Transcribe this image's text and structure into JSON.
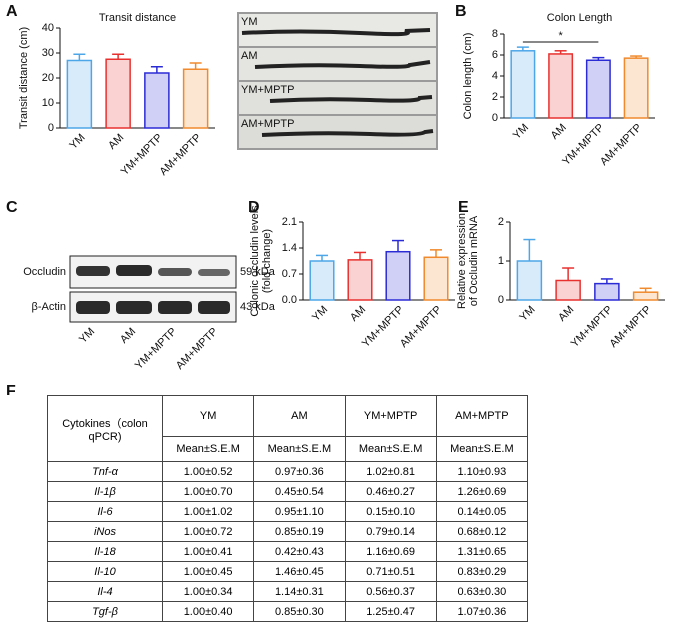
{
  "panel_labels": [
    "A",
    "B",
    "C",
    "D",
    "E",
    "F"
  ],
  "chart_data": [
    {
      "type": "bar",
      "title": "Transit distance",
      "ylabel": [
        "Transit distance (cm)"
      ],
      "categories": [
        "YM",
        "AM",
        "YM+MPTP",
        "AM+MPTP"
      ],
      "values": [
        27,
        27.5,
        22,
        23.5
      ],
      "errors": [
        2.5,
        2,
        2.5,
        2.5
      ],
      "colors": [
        "#4da6e8",
        "#e8312f",
        "#2b2bd6",
        "#f08a2c"
      ],
      "ylim": [
        0,
        40
      ],
      "yticks": [
        0,
        10,
        20,
        30,
        40
      ]
    },
    {
      "type": "bar",
      "title": "Colon Length",
      "ylabel": [
        "Colon length (cm)"
      ],
      "categories": [
        "YM",
        "AM",
        "YM+MPTP",
        "AM+MPTP"
      ],
      "values": [
        6.4,
        6.1,
        5.5,
        5.7
      ],
      "errors": [
        0.35,
        0.3,
        0.25,
        0.2
      ],
      "colors": [
        "#4da6e8",
        "#e8312f",
        "#2b2bd6",
        "#f08a2c"
      ],
      "ylim": [
        0,
        8
      ],
      "yticks": [
        0,
        2,
        4,
        6,
        8
      ],
      "significance": {
        "text": "*",
        "between": [
          "YM",
          "YM+MPTP"
        ]
      }
    },
    {
      "type": "bar",
      "ylabel": [
        "Colonic occludin levels",
        "(fold change)"
      ],
      "categories": [
        "YM",
        "AM",
        "YM+MPTP",
        "AM+MPTP"
      ],
      "values": [
        1.05,
        1.08,
        1.3,
        1.15
      ],
      "errors": [
        0.15,
        0.2,
        0.3,
        0.2
      ],
      "colors": [
        "#4da6e8",
        "#e8312f",
        "#2b2bd6",
        "#f08a2c"
      ],
      "ylim": [
        0,
        2.1
      ],
      "yticks": [
        {
          "value": 0,
          "label": "0.0"
        },
        0.7,
        1.4,
        2.1
      ]
    },
    {
      "type": "bar",
      "ylabel": [
        "Relative expression",
        "of Occludin mRNA"
      ],
      "categories": [
        "YM",
        "AM",
        "YM+MPTP",
        "AM+MPTP"
      ],
      "values": [
        1.0,
        0.5,
        0.42,
        0.2
      ],
      "errors": [
        0.55,
        0.32,
        0.12,
        0.1
      ],
      "colors": [
        "#4da6e8",
        "#e8312f",
        "#2b2bd6",
        "#f08a2c"
      ],
      "ylim": [
        0,
        2
      ],
      "yticks": [
        0,
        1,
        2
      ]
    }
  ],
  "photo": {
    "labels": [
      "YM",
      "AM",
      "YM+MPTP",
      "AM+MPTP"
    ],
    "colors": [
      "#4da6e8",
      "#e8312f",
      "#2b2bd6",
      "#f08a2c"
    ]
  },
  "blot": {
    "bands": [
      "Occludin",
      "β-Actin"
    ],
    "sizes": [
      "59 kDa",
      "43 kDa"
    ],
    "lanes": [
      "YM",
      "AM",
      "YM+MPTP",
      "AM+MPTP"
    ]
  },
  "table": {
    "header": [
      "Cytokines（colon qPCR)",
      "YM",
      "AM",
      "YM+MPTP",
      "AM+MPTP"
    ],
    "subheader": [
      "Mean±S.E.M",
      "Mean±S.E.M",
      "Mean±S.E.M",
      "Mean±S.E.M"
    ],
    "rows": [
      [
        "Tnf-α",
        "1.00±0.52",
        "0.97±0.36",
        "1.02±0.81",
        "1.10±0.93"
      ],
      [
        "Il-1β",
        "1.00±0.70",
        "0.45±0.54",
        "0.46±0.27",
        "1.26±0.69"
      ],
      [
        "Il-6",
        "1.00±1.02",
        "0.95±1.10",
        "0.15±0.10",
        "0.14±0.05"
      ],
      [
        "iNos",
        "1.00±0.72",
        "0.85±0.19",
        "0.79±0.14",
        "0.68±0.12"
      ],
      [
        "Il-18",
        "1.00±0.41",
        "0.42±0.43",
        "1.16±0.69",
        "1.31±0.65"
      ],
      [
        "Il-10",
        "1.00±0.45",
        "1.46±0.45",
        "0.71±0.51",
        "0.83±0.29"
      ],
      [
        "Il-4",
        "1.00±0.34",
        "1.14±0.31",
        "0.56±0.37",
        "0.63±0.30"
      ],
      [
        "Tgf-β",
        "1.00±0.40",
        "0.85±0.30",
        "1.25±0.47",
        "1.07±0.36"
      ]
    ]
  }
}
